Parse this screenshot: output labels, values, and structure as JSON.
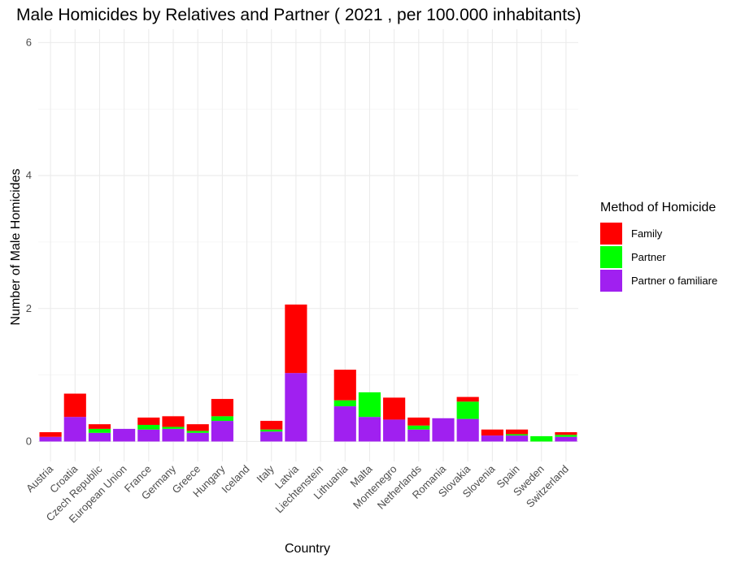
{
  "chart_data": {
    "type": "bar",
    "stacked": true,
    "title": "Male Homicides by Relatives and Partner ( 2021 , per 100.000 inhabitants)",
    "xlabel": "Country",
    "ylabel": "Number of Male Homicides",
    "ylim": [
      -0.3,
      6.2
    ],
    "yticks": [
      0,
      2,
      4,
      6
    ],
    "grid": true,
    "legend_position": "right",
    "legend_title": "Method of Homicide",
    "categories": [
      "Austria",
      "Croatia",
      "Czech Republic",
      "European Union",
      "France",
      "Germany",
      "Greece",
      "Hungary",
      "Iceland",
      "Italy",
      "Latvia",
      "Liechtenstein",
      "Lithuania",
      "Malta",
      "Montenegro",
      "Netherlands",
      "Romania",
      "Slovakia",
      "Slovenia",
      "Spain",
      "Sweden",
      "Switzerland"
    ],
    "series": [
      {
        "name": "Partner o familiare",
        "color": "#A020F0",
        "values": [
          0.07,
          0.37,
          0.13,
          0.19,
          0.18,
          0.19,
          0.13,
          0.31,
          0,
          0.15,
          1.03,
          0,
          0.53,
          0.37,
          0.33,
          0.18,
          0.35,
          0.34,
          0.09,
          0.09,
          0,
          0.07
        ]
      },
      {
        "name": "Partner",
        "color": "#00FF00",
        "values": [
          0,
          0,
          0.06,
          0,
          0.07,
          0.03,
          0.03,
          0.07,
          0,
          0.03,
          0,
          0,
          0.09,
          0.37,
          0,
          0.06,
          0,
          0.26,
          0,
          0.02,
          0.08,
          0.03
        ]
      },
      {
        "name": "Family",
        "color": "#FF0000",
        "values": [
          0.07,
          0.35,
          0.07,
          0,
          0.11,
          0.16,
          0.1,
          0.26,
          0,
          0.13,
          1.03,
          0,
          0.46,
          0,
          0.33,
          0.12,
          0,
          0.07,
          0.09,
          0.07,
          0,
          0.04
        ]
      }
    ]
  },
  "legend": {
    "title": "Method of Homicide",
    "items": [
      {
        "label": "Family",
        "color": "#FF0000"
      },
      {
        "label": "Partner",
        "color": "#00FF00"
      },
      {
        "label": "Partner o familiare",
        "color": "#A020F0"
      }
    ]
  }
}
